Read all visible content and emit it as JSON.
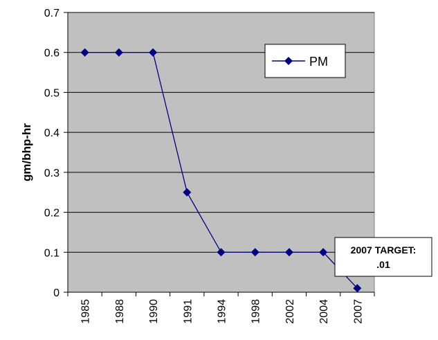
{
  "chart_data": {
    "type": "line",
    "title": "",
    "xlabel": "",
    "ylabel": "gm/bhp-hr",
    "categories": [
      "1985",
      "1988",
      "1990",
      "1991",
      "1994",
      "1998",
      "2002",
      "2004",
      "2007"
    ],
    "series": [
      {
        "name": "PM",
        "values": [
          0.6,
          0.6,
          0.6,
          0.25,
          0.1,
          0.1,
          0.1,
          0.1,
          0.01
        ]
      }
    ],
    "ylim": [
      0,
      0.7
    ],
    "yticks": [
      "0",
      "0.1",
      "0.2",
      "0.3",
      "0.4",
      "0.5",
      "0.6",
      "0.7"
    ],
    "grid": true,
    "legend_position": "top-right",
    "annotation": {
      "line1": "2007 TARGET:",
      "line2": ".01"
    },
    "colors": {
      "plot_bg": "#c0c0c0",
      "series": "#000080",
      "gridline": "#000000"
    }
  }
}
